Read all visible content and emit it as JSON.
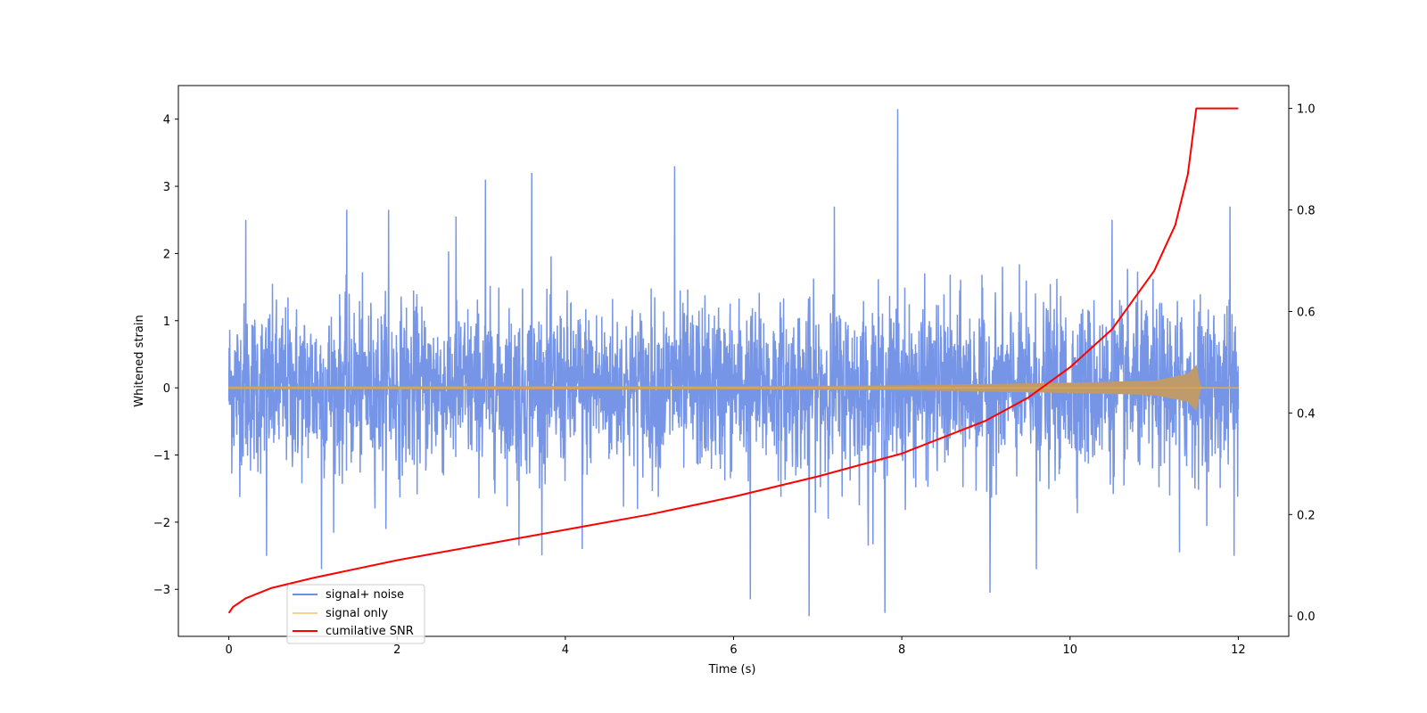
{
  "chart_data": {
    "type": "line",
    "xlabel": "Time (s)",
    "ylabel": "Whitened strain",
    "y2label": "",
    "xlim": [
      -0.6,
      12.6
    ],
    "ylim": [
      -3.7,
      4.5
    ],
    "y2lim": [
      -0.04,
      1.045
    ],
    "xticks": [
      0,
      2,
      4,
      6,
      8,
      10,
      12
    ],
    "yticks": [
      -3,
      -2,
      -1,
      0,
      1,
      2,
      3,
      4
    ],
    "y2ticks": [
      0.0,
      0.2,
      0.4,
      0.6,
      0.8,
      1.0
    ],
    "xtick_labels": [
      "0",
      "2",
      "4",
      "6",
      "8",
      "10",
      "12"
    ],
    "ytick_labels": [
      "−3",
      "−2",
      "−1",
      "0",
      "1",
      "2",
      "3",
      "4"
    ],
    "y2tick_labels": [
      "0.0",
      "0.2",
      "0.4",
      "0.6",
      "0.8",
      "1.0"
    ],
    "grid": false,
    "legend_position": "lower-left",
    "series": [
      {
        "name": "signal+ noise",
        "axis": "left",
        "color": "#6f8fe6",
        "description": "noisy strain spanning 0–12 s, typical amplitude about ±1.5 with spikes",
        "x_range": [
          0,
          12
        ],
        "envelope": [
          -2.5,
          2.5
        ],
        "spikes": [
          {
            "x": 0.2,
            "y": 2.5
          },
          {
            "x": 0.45,
            "y": -2.5
          },
          {
            "x": 1.1,
            "y": -2.7
          },
          {
            "x": 1.4,
            "y": 2.65
          },
          {
            "x": 1.9,
            "y": 2.65
          },
          {
            "x": 2.7,
            "y": 2.55
          },
          {
            "x": 3.05,
            "y": 3.1
          },
          {
            "x": 3.45,
            "y": -2.35
          },
          {
            "x": 3.6,
            "y": 3.2
          },
          {
            "x": 4.2,
            "y": -2.4
          },
          {
            "x": 5.3,
            "y": 3.3
          },
          {
            "x": 6.2,
            "y": -3.15
          },
          {
            "x": 6.9,
            "y": -3.4
          },
          {
            "x": 7.2,
            "y": 2.7
          },
          {
            "x": 7.6,
            "y": -2.35
          },
          {
            "x": 7.8,
            "y": -3.35
          },
          {
            "x": 7.95,
            "y": 4.15
          },
          {
            "x": 9.05,
            "y": -3.05
          },
          {
            "x": 9.6,
            "y": -2.7
          },
          {
            "x": 10.5,
            "y": 2.5
          },
          {
            "x": 11.3,
            "y": -2.45
          },
          {
            "x": 11.9,
            "y": 2.7
          },
          {
            "x": 11.95,
            "y": -2.5
          }
        ]
      },
      {
        "name": "signal only",
        "axis": "left",
        "color": "#f5b041",
        "fill_observed": "#bf9b6b",
        "description": "chirp signal, near zero, growing amplitude until merger at ~11.5 s",
        "envelope_points": [
          {
            "x": 0,
            "y": 0.015
          },
          {
            "x": 6,
            "y": 0.02
          },
          {
            "x": 8,
            "y": 0.03
          },
          {
            "x": 9,
            "y": 0.05
          },
          {
            "x": 10,
            "y": 0.07
          },
          {
            "x": 11,
            "y": 0.1
          },
          {
            "x": 11.4,
            "y": 0.2
          },
          {
            "x": 11.5,
            "y": 0.33
          },
          {
            "x": 11.55,
            "y": 0.0
          },
          {
            "x": 12,
            "y": 0.0
          }
        ]
      },
      {
        "name": "cumilative SNR",
        "axis": "right",
        "color": "#ff0000",
        "x": [
          0,
          0.05,
          0.2,
          0.5,
          1,
          2,
          3,
          4,
          5,
          6,
          7,
          8,
          9,
          9.5,
          10,
          10.5,
          11,
          11.25,
          11.4,
          11.5,
          11.55,
          12
        ],
        "y": [
          0.006,
          0.018,
          0.035,
          0.055,
          0.075,
          0.11,
          0.14,
          0.17,
          0.2,
          0.235,
          0.275,
          0.32,
          0.385,
          0.43,
          0.49,
          0.565,
          0.68,
          0.77,
          0.87,
          1.0,
          1.0,
          1.0
        ]
      }
    ]
  }
}
